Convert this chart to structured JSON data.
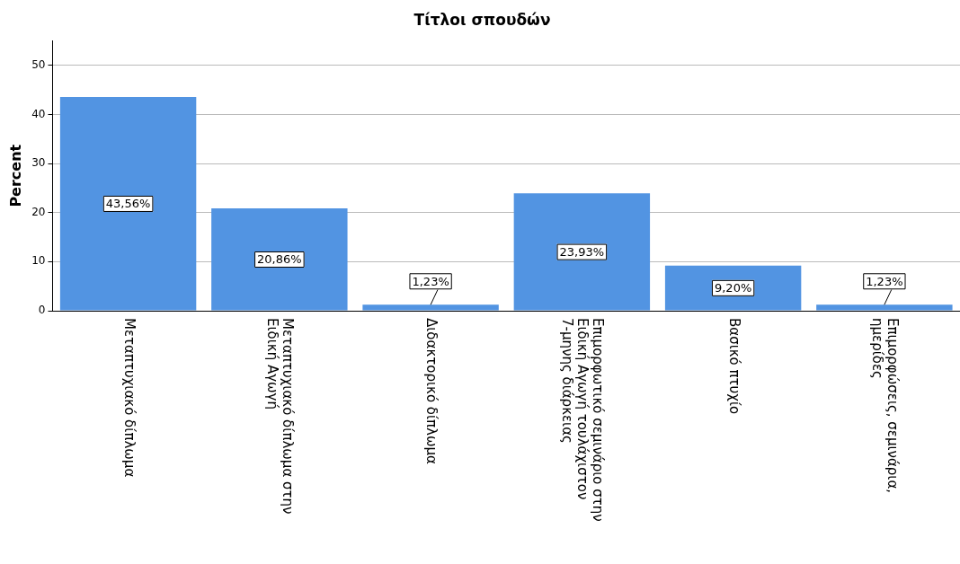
{
  "chart_data": {
    "type": "bar",
    "title": "Τίτλοι σπουδών",
    "ylabel": "Percent",
    "categories": [
      "Μεταπτυχιακό δίπλωμα",
      "Μεταπτυχιακό δίπλωμα στην Ειδική Αγωγή",
      "Διδακτορικό δίπλωμα",
      "Επιμορφωτικό σεμινάριο στην Ειδική Αγωγή τουλάχιστον 7-μηνης διάρκειας",
      "Βασικό πτυχίο",
      "Επιμορφώσεις, σεμινάρια, ημερίδες"
    ],
    "values": [
      43.56,
      20.86,
      1.23,
      23.93,
      9.2,
      1.23
    ],
    "value_labels": [
      "43,56%",
      "20,86%",
      "1,23%",
      "23,93%",
      "9,20%",
      "1,23%"
    ],
    "color": "#5294e2",
    "ylim": [
      0,
      55
    ],
    "yticks": [
      0,
      10,
      20,
      30,
      40,
      50
    ],
    "grid": "y",
    "legend": false
  }
}
